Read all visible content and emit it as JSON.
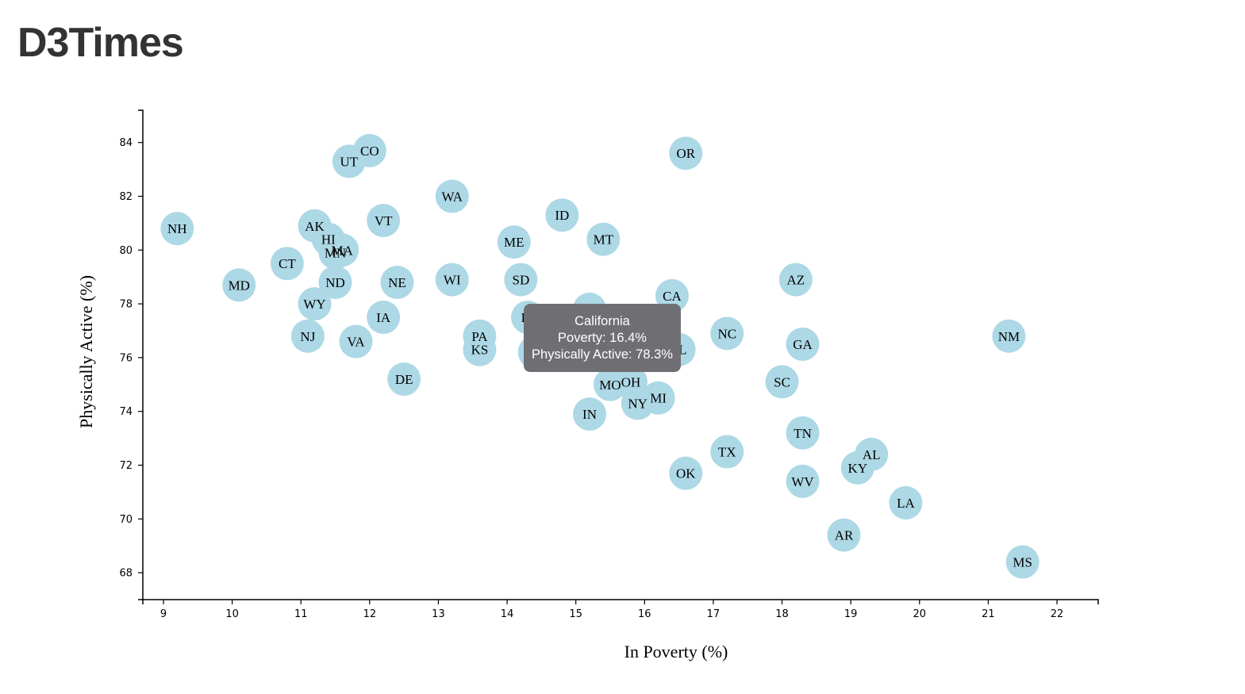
{
  "page": {
    "title": "D3Times"
  },
  "colors": {
    "circle_fill": "#add8e6",
    "axis": "#000000",
    "tooltip_bg": "#6f6f73",
    "tooltip_text": "#ffffff",
    "title": "#333333"
  },
  "chart_data": {
    "type": "scatter",
    "xlabel": "In Poverty (%)",
    "ylabel": "Physically Active (%)",
    "xlim": [
      8.7,
      22.6
    ],
    "ylim": [
      67.0,
      85.2
    ],
    "xticks": [
      9,
      10,
      11,
      12,
      13,
      14,
      15,
      16,
      17,
      18,
      19,
      20,
      21,
      22
    ],
    "yticks": [
      68,
      70,
      72,
      74,
      76,
      78,
      80,
      82,
      84
    ],
    "points": [
      {
        "abbr": "NH",
        "x": 9.2,
        "y": 80.8
      },
      {
        "abbr": "MD",
        "x": 10.1,
        "y": 78.7
      },
      {
        "abbr": "CT",
        "x": 10.8,
        "y": 79.5
      },
      {
        "abbr": "NJ",
        "x": 11.1,
        "y": 76.8
      },
      {
        "abbr": "WY",
        "x": 11.2,
        "y": 78.0
      },
      {
        "abbr": "AK",
        "x": 11.2,
        "y": 80.9
      },
      {
        "abbr": "HI",
        "x": 11.4,
        "y": 80.4
      },
      {
        "abbr": "MN",
        "x": 11.5,
        "y": 79.9
      },
      {
        "abbr": "MA",
        "x": 11.6,
        "y": 80.0
      },
      {
        "abbr": "ND",
        "x": 11.5,
        "y": 78.8
      },
      {
        "abbr": "VA",
        "x": 11.8,
        "y": 76.6
      },
      {
        "abbr": "UT",
        "x": 11.7,
        "y": 83.3
      },
      {
        "abbr": "CO",
        "x": 12.0,
        "y": 83.7
      },
      {
        "abbr": "IA",
        "x": 12.2,
        "y": 77.5
      },
      {
        "abbr": "VT",
        "x": 12.2,
        "y": 81.1
      },
      {
        "abbr": "NE",
        "x": 12.4,
        "y": 78.8
      },
      {
        "abbr": "DE",
        "x": 12.5,
        "y": 75.2
      },
      {
        "abbr": "WA",
        "x": 13.2,
        "y": 82.0
      },
      {
        "abbr": "WI",
        "x": 13.2,
        "y": 78.9
      },
      {
        "abbr": "PA",
        "x": 13.6,
        "y": 76.8
      },
      {
        "abbr": "KS",
        "x": 13.6,
        "y": 76.3
      },
      {
        "abbr": "ME",
        "x": 14.1,
        "y": 80.3
      },
      {
        "abbr": "SD",
        "x": 14.2,
        "y": 78.9
      },
      {
        "abbr": "RI",
        "x": 14.3,
        "y": 77.5
      },
      {
        "abbr": "IL",
        "x": 14.4,
        "y": 76.2
      },
      {
        "abbr": "ID",
        "x": 14.8,
        "y": 81.3
      },
      {
        "abbr": "NV",
        "x": 15.2,
        "y": 77.8
      },
      {
        "abbr": "IN",
        "x": 15.2,
        "y": 73.9
      },
      {
        "abbr": "MT",
        "x": 15.4,
        "y": 80.4
      },
      {
        "abbr": "MO",
        "x": 15.5,
        "y": 75.0
      },
      {
        "abbr": "OH",
        "x": 15.8,
        "y": 75.1
      },
      {
        "abbr": "NY",
        "x": 15.9,
        "y": 74.3
      },
      {
        "abbr": "MI",
        "x": 16.2,
        "y": 74.5
      },
      {
        "abbr": "CA",
        "x": 16.4,
        "y": 78.3
      },
      {
        "abbr": "FL",
        "x": 16.5,
        "y": 76.3
      },
      {
        "abbr": "OR",
        "x": 16.6,
        "y": 83.6
      },
      {
        "abbr": "OK",
        "x": 16.6,
        "y": 71.7
      },
      {
        "abbr": "NC",
        "x": 17.2,
        "y": 76.9
      },
      {
        "abbr": "TX",
        "x": 17.2,
        "y": 72.5
      },
      {
        "abbr": "SC",
        "x": 18.0,
        "y": 75.1
      },
      {
        "abbr": "AZ",
        "x": 18.2,
        "y": 78.9
      },
      {
        "abbr": "GA",
        "x": 18.3,
        "y": 76.5
      },
      {
        "abbr": "TN",
        "x": 18.3,
        "y": 73.2
      },
      {
        "abbr": "WV",
        "x": 18.3,
        "y": 71.4
      },
      {
        "abbr": "AR",
        "x": 18.9,
        "y": 69.4
      },
      {
        "abbr": "KY",
        "x": 19.1,
        "y": 71.9
      },
      {
        "abbr": "AL",
        "x": 19.3,
        "y": 72.4
      },
      {
        "abbr": "LA",
        "x": 19.8,
        "y": 70.6
      },
      {
        "abbr": "NM",
        "x": 21.3,
        "y": 76.8
      },
      {
        "abbr": "MS",
        "x": 21.5,
        "y": 68.4
      }
    ],
    "tooltip": {
      "state": "California",
      "poverty_line": "Poverty: 16.4%",
      "active_line": "Physically Active: 78.3%"
    }
  }
}
